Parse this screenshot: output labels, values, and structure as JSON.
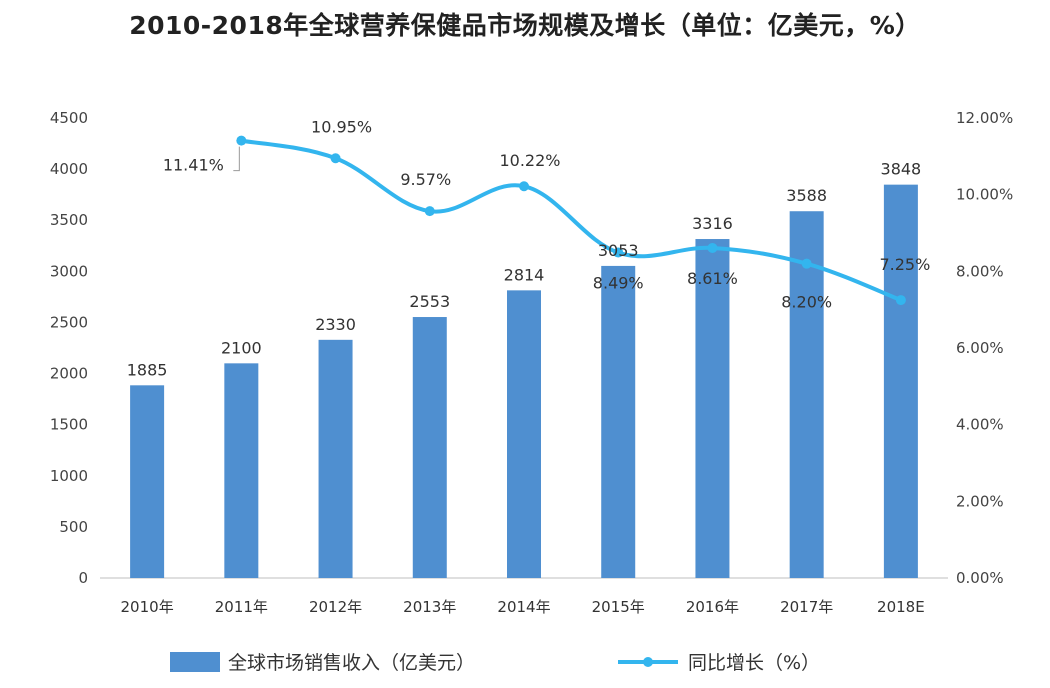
{
  "chart_data": {
    "type": "bar+line",
    "title": "2010-2018年全球营养保健品市场规模及增长（单位：亿美元，%）",
    "categories": [
      "2010年",
      "2011年",
      "2012年",
      "2013年",
      "2014年",
      "2015年",
      "2016年",
      "2017年",
      "2018E"
    ],
    "series": [
      {
        "name": "全球市场销售收入（亿美元）",
        "type": "bar",
        "axis": "left",
        "values": [
          1885,
          2100,
          2330,
          2553,
          2814,
          3053,
          3316,
          3588,
          3848
        ],
        "labels": [
          "1885",
          "2100",
          "2330",
          "2553",
          "2814",
          "3053",
          "3316",
          "3588",
          "3848"
        ]
      },
      {
        "name": "同比增长（%）",
        "type": "line",
        "axis": "right",
        "values": [
          null,
          11.41,
          10.95,
          9.57,
          10.22,
          8.49,
          8.61,
          8.2,
          7.25
        ],
        "labels": [
          "",
          "11.41%",
          "10.95%",
          "9.57%",
          "10.22%",
          "8.49%",
          "8.61%",
          "8.20%",
          "7.25%"
        ]
      }
    ],
    "y_left": {
      "min": 0,
      "max": 4500,
      "ticks": [
        "0",
        "500",
        "1000",
        "1500",
        "2000",
        "2500",
        "3000",
        "3500",
        "4000",
        "4500"
      ]
    },
    "y_right": {
      "min": 0,
      "max": 12,
      "ticks": [
        "0.00%",
        "2.00%",
        "4.00%",
        "6.00%",
        "8.00%",
        "10.00%",
        "12.00%"
      ]
    },
    "grid": false,
    "legend_position": "bottom",
    "colors": {
      "bar": "#4f8fd0",
      "line": "#33b5ee"
    }
  }
}
